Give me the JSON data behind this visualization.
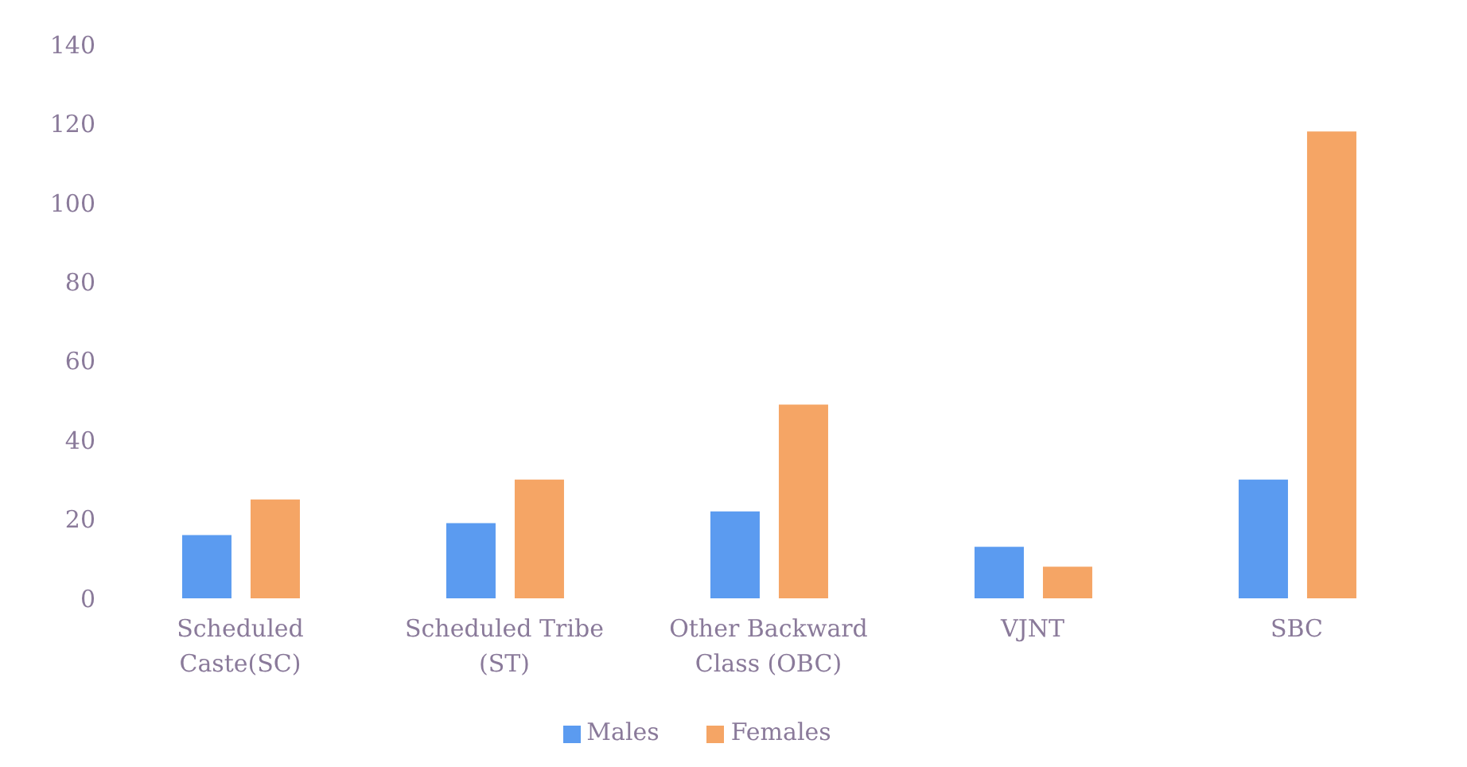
{
  "chart_data": {
    "type": "bar",
    "categories": [
      "Scheduled Caste(SC)",
      "Scheduled Tribe (ST)",
      "Other Backward Class (OBC)",
      "VJNT",
      "SBC"
    ],
    "series": [
      {
        "name": "Males",
        "color": "#5b9bf0",
        "values": [
          16,
          19,
          22,
          13,
          30
        ]
      },
      {
        "name": "Females",
        "color": "#f5a565",
        "values": [
          25,
          30,
          49,
          8,
          118
        ]
      }
    ],
    "ylim": [
      0,
      140
    ],
    "yticks": [
      0,
      20,
      40,
      60,
      80,
      100,
      120,
      140
    ],
    "legend": "bottom"
  }
}
